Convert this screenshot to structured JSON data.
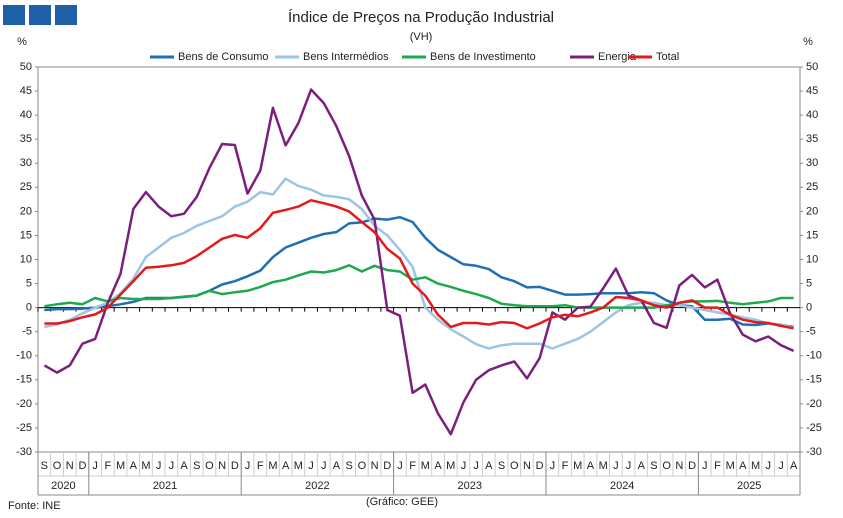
{
  "chart_data": {
    "type": "line",
    "title": "Índice de Preços na Produção Industrial",
    "subtitle": "(VH)",
    "y_unit": "%",
    "y2_unit": "%",
    "source": "Fonte: INE",
    "credit": "(Gráfico: GEE)",
    "categories": [
      "S",
      "O",
      "N",
      "D",
      "J",
      "F",
      "M",
      "A",
      "M",
      "J",
      "J",
      "A",
      "S",
      "O",
      "N",
      "D",
      "J",
      "F",
      "M",
      "A",
      "M",
      "J",
      "J",
      "A",
      "S",
      "O",
      "N",
      "D",
      "J",
      "F",
      "M",
      "A",
      "M",
      "J",
      "J",
      "A",
      "S",
      "O",
      "N",
      "D",
      "J",
      "F",
      "M",
      "A",
      "M",
      "J",
      "J",
      "A",
      "S",
      "O",
      "N",
      "D",
      "J",
      "F",
      "M",
      "A",
      "M",
      "J",
      "J",
      "A"
    ],
    "year_groups": [
      {
        "label": "2020",
        "months": 4
      },
      {
        "label": "2021",
        "months": 12
      },
      {
        "label": "2022",
        "months": 12
      },
      {
        "label": "2023",
        "months": 12
      },
      {
        "label": "2024",
        "months": 12
      },
      {
        "label": "2025",
        "months": 8
      }
    ],
    "ylim": [
      -30,
      50
    ],
    "yticks": [
      -30,
      -25,
      -20,
      -15,
      -10,
      -5,
      0,
      5,
      10,
      15,
      20,
      25,
      30,
      35,
      40,
      45,
      50
    ],
    "series": [
      {
        "name": "Bens de Consumo",
        "color": "#1f6fb2",
        "values": [
          -0.5,
          -0.3,
          -0.3,
          -0.2,
          0,
          0.3,
          0.7,
          1.2,
          2,
          2,
          2,
          2.2,
          2.5,
          3.5,
          4.8,
          5.5,
          6.5,
          7.7,
          10.5,
          12.5,
          13.5,
          14.5,
          15.3,
          15.7,
          17.5,
          17.7,
          18.5,
          18.3,
          18.8,
          17.8,
          14.5,
          12,
          10.5,
          9,
          8.7,
          8,
          6.3,
          5.5,
          4.2,
          4.3,
          3.5,
          2.7,
          2.7,
          2.8,
          3,
          3,
          3,
          3.2,
          3,
          1.5,
          0.5,
          0.3,
          -2.5,
          -2.5,
          -2.3,
          -3.5,
          -3.6,
          -3.3,
          -3.6,
          -4
        ]
      },
      {
        "name": "Bens Intermédios",
        "color": "#9dc3e6",
        "values": [
          -4,
          -3.5,
          -2.5,
          -1.2,
          0,
          1,
          3,
          6,
          10.5,
          12.5,
          14.5,
          15.5,
          17,
          18,
          19,
          21,
          22,
          24,
          23.5,
          26.8,
          25.3,
          24.5,
          23.3,
          23,
          22.5,
          20.5,
          17,
          15,
          12,
          8.5,
          0,
          -2.5,
          -4.5,
          -6,
          -7.6,
          -8.5,
          -7.8,
          -7.5,
          -7.5,
          -7.5,
          -8.5,
          -7.5,
          -6.5,
          -5,
          -3,
          -1,
          0.5,
          1,
          1,
          0.5,
          0.5,
          0,
          -0.5,
          -1,
          -1.5,
          -2,
          -2.5,
          -3.3,
          -3.5,
          -4.2
        ]
      },
      {
        "name": "Bens de Investimento",
        "color": "#1fa84f",
        "values": [
          0.3,
          0.7,
          1,
          0.7,
          2,
          1.3,
          2,
          1.8,
          1.8,
          1.8,
          2,
          2.3,
          2.5,
          3.5,
          2.8,
          3.2,
          3.5,
          4.3,
          5.3,
          5.8,
          6.7,
          7.5,
          7.3,
          7.8,
          8.8,
          7.5,
          8.7,
          7.8,
          7.5,
          5.8,
          6.3,
          5,
          4.3,
          3.5,
          2.8,
          2,
          0.8,
          0.5,
          0.3,
          0.3,
          0.3,
          0.5,
          0,
          0,
          0,
          0,
          0,
          0,
          0,
          0.5,
          1,
          1.3,
          1.3,
          1.4,
          1,
          0.7,
          1,
          1.3,
          2,
          2
        ]
      },
      {
        "name": "Energia",
        "color": "#7b1f7f",
        "values": [
          -12,
          -13.5,
          -12,
          -7.5,
          -6.5,
          1,
          7,
          20.5,
          24,
          21,
          19,
          19.5,
          23,
          29,
          34,
          33.8,
          23.7,
          28.5,
          41.5,
          33.7,
          38.3,
          45.3,
          42.5,
          37.7,
          31.5,
          23.3,
          18.3,
          -0.5,
          -1.7,
          -17.7,
          -16,
          -22,
          -26.3,
          -19.7,
          -15,
          -13,
          -12,
          -11.2,
          -14.7,
          -10.5,
          -1,
          -2.5,
          0,
          0.2,
          4,
          8.1,
          2.5,
          1.5,
          -3.2,
          -4.2,
          4.6,
          6.8,
          4.2,
          5.8,
          -1.2,
          -5.6,
          -7,
          -6,
          -7.8,
          -9
        ]
      },
      {
        "name": "Total",
        "color": "#e31a1c",
        "values": [
          -3.3,
          -3.3,
          -2.8,
          -2,
          -1.4,
          0,
          2.7,
          5.5,
          8.3,
          8.5,
          8.8,
          9.3,
          10.7,
          12.5,
          14.3,
          15.1,
          14.5,
          16.5,
          19.7,
          20.3,
          21,
          22.3,
          21.7,
          21,
          20,
          17.8,
          15.7,
          12.2,
          10.2,
          5,
          2.5,
          -1.5,
          -4,
          -3.2,
          -3.2,
          -3.5,
          -3,
          -3.2,
          -4.3,
          -3.3,
          -2,
          -1.5,
          -1.8,
          -1,
          0,
          2.2,
          2,
          1.5,
          0.5,
          0,
          1,
          1.5,
          0,
          0,
          -1.5,
          -2.5,
          -3,
          -3.2,
          -3.8,
          -4.3
        ]
      }
    ]
  }
}
